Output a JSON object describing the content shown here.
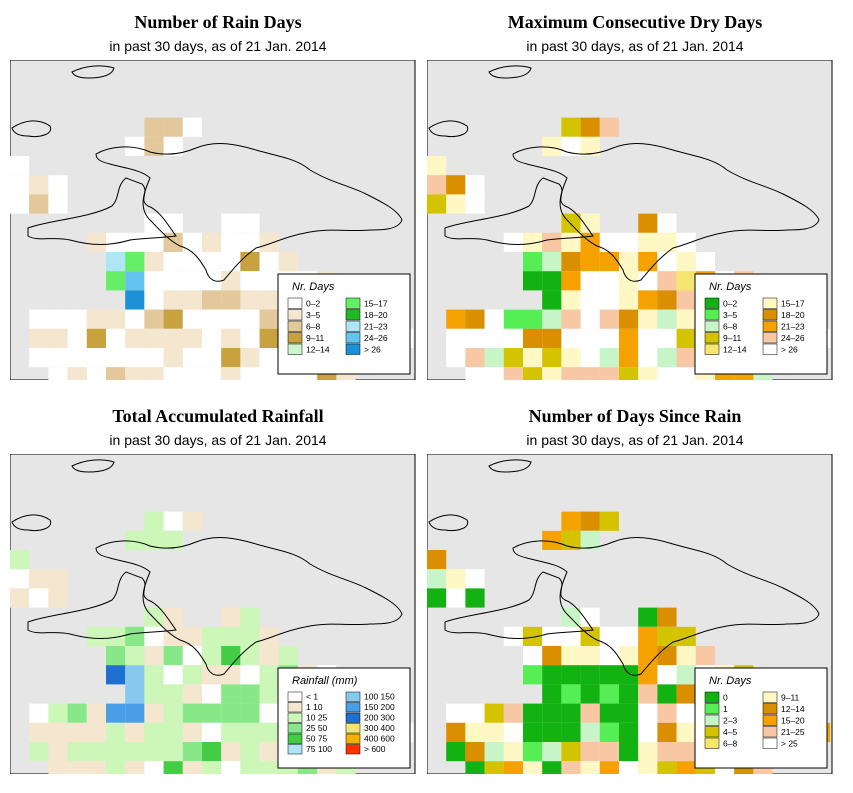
{
  "panels": [
    {
      "title": "Number of Rain Days",
      "subtitle": "in past 30 days, as of  21 Jan. 2014",
      "legend": {
        "title": "Nr. Days",
        "entries": [
          {
            "label": "0–2",
            "color": "#ffffff"
          },
          {
            "label": "3–5",
            "color": "#f5e6cf"
          },
          {
            "label": "6–8",
            "color": "#e3c89b"
          },
          {
            "label": "9–11",
            "color": "#c8a23f"
          },
          {
            "label": "12–14",
            "color": "#ccf5cc"
          },
          {
            "label": "15–17",
            "color": "#66ee66"
          },
          {
            "label": "18–20",
            "color": "#22b822"
          },
          {
            "label": "21–23",
            "color": "#aee6f6"
          },
          {
            "label": "24–26",
            "color": "#66c2ee"
          },
          {
            "label": "> 26",
            "color": "#1e90d6"
          }
        ]
      }
    },
    {
      "title": "Maximum Consecutive Dry Days",
      "subtitle": "in past 30 days, as of  21 Jan. 2014",
      "legend": {
        "title": "Nr. Days",
        "entries": [
          {
            "label": "0–2",
            "color": "#11b211"
          },
          {
            "label": "3–5",
            "color": "#55ee55"
          },
          {
            "label": "6–8",
            "color": "#c8f5c8"
          },
          {
            "label": "9–11",
            "color": "#d4c400"
          },
          {
            "label": "12–14",
            "color": "#f5e46e"
          },
          {
            "label": "15–17",
            "color": "#fff8c4"
          },
          {
            "label": "18–20",
            "color": "#d98f00"
          },
          {
            "label": "21–23",
            "color": "#f5a200"
          },
          {
            "label": "24–26",
            "color": "#f8c8a4"
          },
          {
            "label": "> 26",
            "color": "#ffffff"
          }
        ]
      }
    },
    {
      "title": "Total Accumulated Rainfall",
      "subtitle": "in past 30 days, as of  21 Jan. 2014",
      "legend": {
        "title": "Rainfall (mm)",
        "entries": [
          {
            "label": "< 1",
            "color": "#ffffff"
          },
          {
            "label": "1    10",
            "color": "#f5e6cf"
          },
          {
            "label": "10    25",
            "color": "#ccf7b8"
          },
          {
            "label": "25    50",
            "color": "#88e888"
          },
          {
            "label": "50    75",
            "color": "#44cc44"
          },
          {
            "label": "75   100",
            "color": "#aee6f6"
          },
          {
            "label": "100   150",
            "color": "#88c8ee"
          },
          {
            "label": "150   200",
            "color": "#4a9ee8"
          },
          {
            "label": "200   300",
            "color": "#1e70d0"
          },
          {
            "label": "300   400",
            "color": "#f5e46e"
          },
          {
            "label": "400   600",
            "color": "#f5b000"
          },
          {
            "label": "> 600",
            "color": "#ff3300"
          }
        ]
      }
    },
    {
      "title": "Number of Days Since Rain",
      "subtitle": "in past 30 days, as of  21 Jan. 2014",
      "legend": {
        "title": "Nr. Days",
        "entries": [
          {
            "label": "0",
            "color": "#11b211"
          },
          {
            "label": "1",
            "color": "#55ee55"
          },
          {
            "label": "2–3",
            "color": "#c8f5c8"
          },
          {
            "label": "4–5",
            "color": "#d4c400"
          },
          {
            "label": "6–8",
            "color": "#f5e46e"
          },
          {
            "label": "9–11",
            "color": "#fff8c4"
          },
          {
            "label": "12–14",
            "color": "#d98f00"
          },
          {
            "label": "15–20",
            "color": "#f5a200"
          },
          {
            "label": "21–25",
            "color": "#f8c8a4"
          },
          {
            "label": "> 25",
            "color": "#ffffff"
          }
        ]
      }
    }
  ]
}
